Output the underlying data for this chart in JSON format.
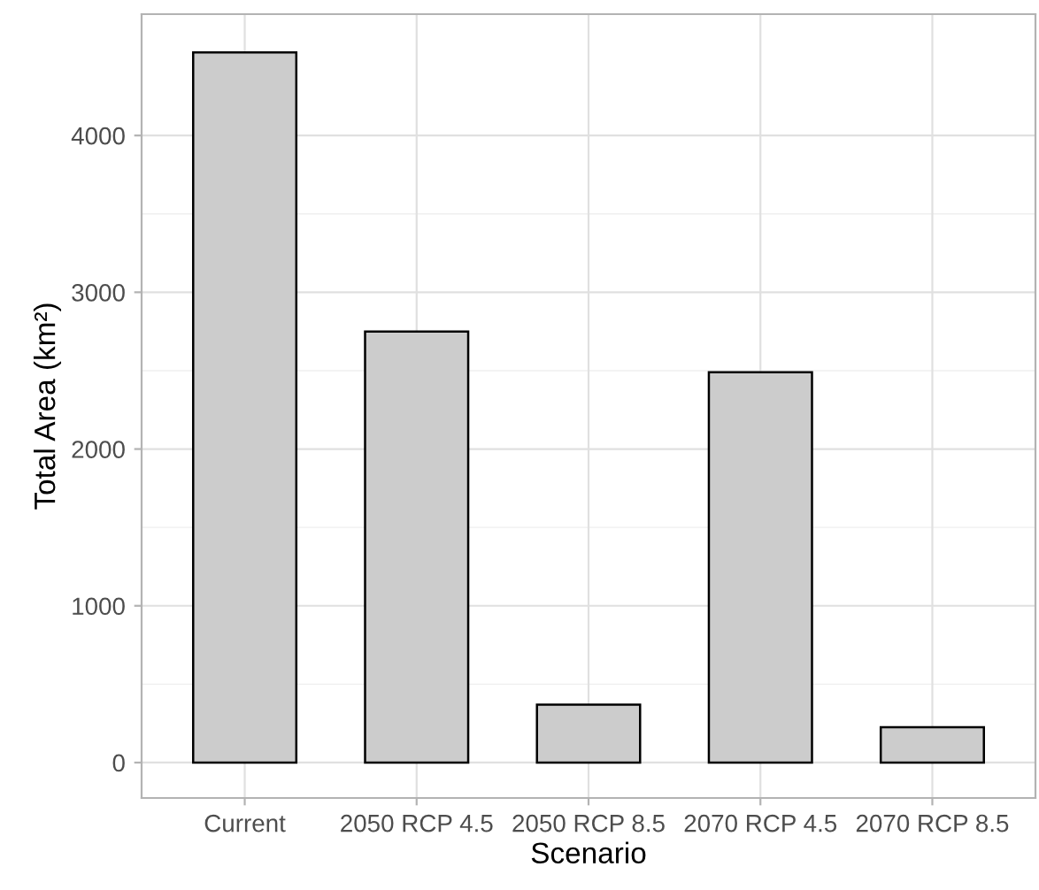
{
  "chart_data": {
    "type": "bar",
    "xlabel": "Scenario",
    "ylabel": "Total Area (km²)",
    "categories": [
      "Current",
      "2050 RCP 4.5",
      "2050 RCP 8.5",
      "2070 RCP 4.5",
      "2070 RCP 8.5"
    ],
    "values": [
      4530,
      2750,
      370,
      2490,
      225
    ],
    "color": "#cccccc",
    "ylim": [
      -226,
      4774
    ],
    "yticks": [
      0,
      1000,
      2000,
      3000,
      4000
    ],
    "grid": true
  }
}
